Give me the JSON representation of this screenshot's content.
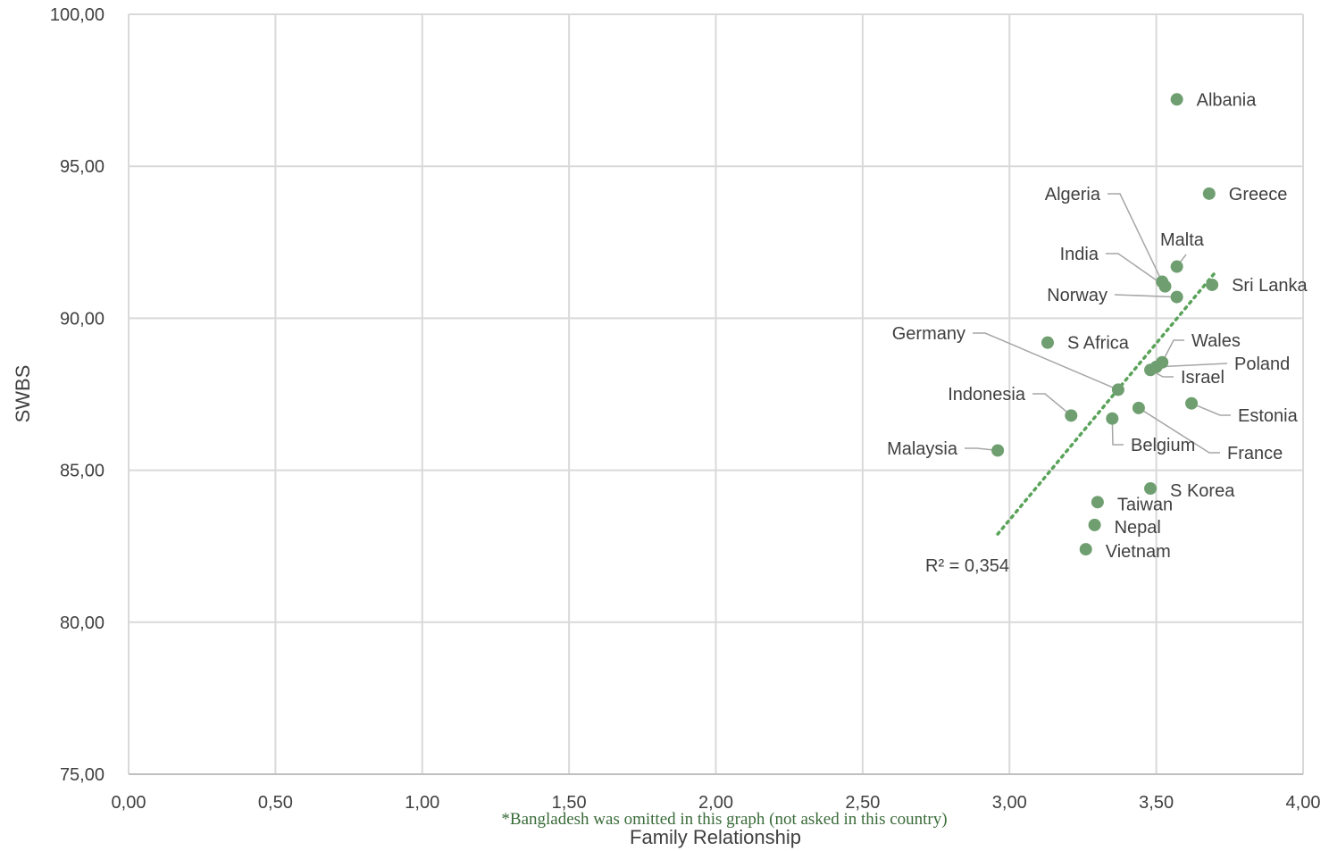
{
  "chart_data": {
    "type": "scatter",
    "title": "",
    "xlabel": "Family Relationship",
    "ylabel": "SWBS",
    "xlim": [
      0,
      4
    ],
    "ylim": [
      75,
      100
    ],
    "x_ticks": [
      "0,00",
      "0,50",
      "1,00",
      "1,50",
      "2,00",
      "2,50",
      "3,00",
      "3,50",
      "4,00"
    ],
    "y_ticks": [
      "75,00",
      "80,00",
      "85,00",
      "90,00",
      "95,00",
      "100,00"
    ],
    "grid": true,
    "legend": "none",
    "point_color": "#6f9f70",
    "trendline": {
      "type": "linear",
      "style": "dotted",
      "color": "#5aa35a",
      "x_range": [
        2.96,
        3.7
      ],
      "y_range": [
        82.9,
        91.5
      ],
      "r_squared_label": "R² = 0,354"
    },
    "points": [
      {
        "label": "Albania",
        "x": 3.57,
        "y": 97.2
      },
      {
        "label": "Greece",
        "x": 3.68,
        "y": 94.1
      },
      {
        "label": "Algeria",
        "x": 3.52,
        "y": 91.2
      },
      {
        "label": "Malta",
        "x": 3.57,
        "y": 91.7
      },
      {
        "label": "India",
        "x": 3.53,
        "y": 91.05
      },
      {
        "label": "Sri Lanka",
        "x": 3.69,
        "y": 91.1
      },
      {
        "label": "Norway",
        "x": 3.57,
        "y": 90.7
      },
      {
        "label": "S Africa",
        "x": 3.13,
        "y": 89.2
      },
      {
        "label": "Germany",
        "x": 3.37,
        "y": 87.65
      },
      {
        "label": "Wales",
        "x": 3.52,
        "y": 88.55
      },
      {
        "label": "Poland",
        "x": 3.5,
        "y": 88.4
      },
      {
        "label": "Israel",
        "x": 3.48,
        "y": 88.3
      },
      {
        "label": "Indonesia",
        "x": 3.21,
        "y": 86.8
      },
      {
        "label": "Estonia",
        "x": 3.62,
        "y": 87.2
      },
      {
        "label": "France",
        "x": 3.44,
        "y": 87.05
      },
      {
        "label": "Belgium",
        "x": 3.35,
        "y": 86.7
      },
      {
        "label": "Malaysia",
        "x": 2.96,
        "y": 85.65
      },
      {
        "label": "S Korea",
        "x": 3.48,
        "y": 84.4
      },
      {
        "label": "Taiwan",
        "x": 3.3,
        "y": 83.95
      },
      {
        "label": "Nepal",
        "x": 3.29,
        "y": 83.2
      },
      {
        "label": "Vietnam",
        "x": 3.26,
        "y": 82.4
      }
    ]
  },
  "footnote": {
    "text": "*Bangladesh was omitted in this graph (not asked in this country)",
    "color": "#3a6b3a"
  }
}
